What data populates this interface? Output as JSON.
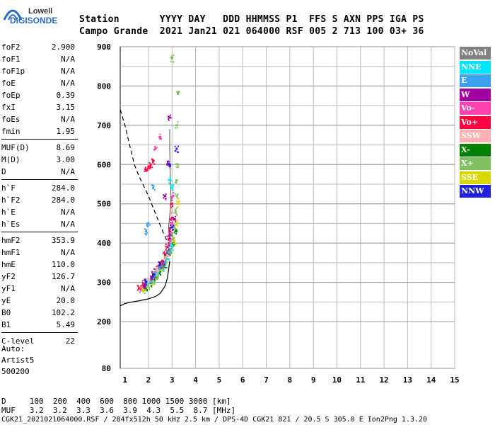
{
  "logo": {
    "line1": "Lowell",
    "line2": "DIGISONDE"
  },
  "header": {
    "row1": "Station       YYYY DAY   DDD HHMMSS P1  FFS S AXN PPS IGA PS",
    "row2": "Campo Grande  2021 Jan21 021 064000 RSF 005 2 713 100 03+ 36"
  },
  "params": [
    {
      "label": "foF2",
      "value": "2.900"
    },
    {
      "label": "foF1",
      "value": "N/A"
    },
    {
      "label": "foF1p",
      "value": "N/A"
    },
    {
      "label": "foE",
      "value": "N/A"
    },
    {
      "label": "foEp",
      "value": "0.39"
    },
    {
      "label": "fxI",
      "value": "3.15"
    },
    {
      "label": "foEs",
      "value": "N/A"
    },
    {
      "label": "fmin",
      "value": "1.95"
    },
    {
      "label": "MUF(D)",
      "value": "8.69"
    },
    {
      "label": "M(D)",
      "value": "3.00"
    },
    {
      "label": "D",
      "value": "N/A"
    },
    {
      "label": "h`F",
      "value": "284.0"
    },
    {
      "label": "h`F2",
      "value": "284.0"
    },
    {
      "label": "h`E",
      "value": "N/A"
    },
    {
      "label": "h`Es",
      "value": "N/A"
    },
    {
      "label": "hmF2",
      "value": "353.9"
    },
    {
      "label": "hmF1",
      "value": "N/A"
    },
    {
      "label": "hmE",
      "value": "110.0"
    },
    {
      "label": "yF2",
      "value": "126.7"
    },
    {
      "label": "yF1",
      "value": "N/A"
    },
    {
      "label": "yE",
      "value": "20.0"
    },
    {
      "label": "B0",
      "value": "102.2"
    },
    {
      "label": "B1",
      "value": "5.49"
    },
    {
      "label": "C-level",
      "value": "22"
    }
  ],
  "auto": {
    "line1": "Auto:",
    "line2": "Artist5",
    "line3": "500200"
  },
  "legend": [
    {
      "label": "NoVal",
      "color": "#808080"
    },
    {
      "label": "NNE",
      "color": "#00e5ff"
    },
    {
      "label": "E",
      "color": "#3ca0f0"
    },
    {
      "label": "W",
      "color": "#a000a0"
    },
    {
      "label": "Vo-",
      "color": "#ff40b0"
    },
    {
      "label": "Vo+",
      "color": "#ff0040"
    },
    {
      "label": "SSW",
      "color": "#ffb0b0"
    },
    {
      "label": "X-",
      "color": "#008000"
    },
    {
      "label": "X+",
      "color": "#80c060"
    },
    {
      "label": "SSE",
      "color": "#d8d800"
    },
    {
      "label": "NNW",
      "color": "#2020e0"
    }
  ],
  "footer": {
    "d_row": "D     100  200  400  600  800 1000 1500 3000 [km]",
    "muf_row": "MUF   3.2  3.2  3.3  3.6  3.9  4.3  5.5  8.7 [MHz]",
    "info": "CGK21_2021021064000.RSF / 284fx512h 50 kHz 2.5 km / DPS-4D CGK21 821 / 20.5 S 305.0 E Ion2Png 1.3.20"
  },
  "chart_data": {
    "type": "scatter",
    "title": "",
    "xlabel": "",
    "ylabel": "",
    "xlim": [
      0.8,
      15
    ],
    "ylim": [
      80,
      900
    ],
    "x_ticks": [
      1,
      2,
      3,
      4,
      5,
      6,
      7,
      8,
      9,
      10,
      11,
      12,
      13,
      14,
      15
    ],
    "y_ticks": [
      80,
      200,
      300,
      400,
      500,
      600,
      700,
      800,
      900
    ],
    "grid": true,
    "series": [
      {
        "name": "Vo+",
        "color": "#ff0040",
        "points": [
          [
            1.6,
            285
          ],
          [
            1.7,
            290
          ],
          [
            1.8,
            295
          ],
          [
            1.9,
            300
          ],
          [
            2.0,
            305
          ],
          [
            2.1,
            310
          ],
          [
            2.2,
            318
          ],
          [
            2.3,
            325
          ],
          [
            2.4,
            335
          ],
          [
            2.5,
            345
          ],
          [
            2.6,
            355
          ],
          [
            2.7,
            370
          ],
          [
            2.8,
            390
          ],
          [
            2.85,
            410
          ],
          [
            2.9,
            430
          ],
          [
            2.95,
            460
          ],
          [
            3.0,
            500
          ],
          [
            1.9,
            585
          ],
          [
            2.0,
            595
          ],
          [
            2.1,
            600
          ],
          [
            2.2,
            610
          ]
        ]
      },
      {
        "name": "Vo-",
        "color": "#ff40b0",
        "points": [
          [
            1.7,
            280
          ],
          [
            1.85,
            290
          ],
          [
            2.05,
            300
          ],
          [
            2.25,
            315
          ],
          [
            2.45,
            330
          ],
          [
            2.65,
            350
          ],
          [
            2.75,
            365
          ],
          [
            2.9,
            400
          ],
          [
            3.0,
            450
          ],
          [
            3.05,
            520
          ],
          [
            2.3,
            640
          ],
          [
            2.5,
            670
          ]
        ]
      },
      {
        "name": "X+",
        "color": "#80c060",
        "points": [
          [
            1.8,
            280
          ],
          [
            2.0,
            290
          ],
          [
            2.2,
            300
          ],
          [
            2.4,
            315
          ],
          [
            2.6,
            335
          ],
          [
            2.8,
            360
          ],
          [
            2.95,
            385
          ],
          [
            3.05,
            410
          ],
          [
            3.1,
            440
          ],
          [
            3.15,
            480
          ],
          [
            3.2,
            520
          ],
          [
            3.2,
            560
          ],
          [
            3.25,
            600
          ],
          [
            3.2,
            700
          ],
          [
            3.25,
            780
          ],
          [
            3.0,
            870
          ]
        ]
      },
      {
        "name": "X-",
        "color": "#008000",
        "points": [
          [
            1.9,
            285
          ],
          [
            2.1,
            298
          ],
          [
            2.3,
            312
          ],
          [
            2.5,
            328
          ],
          [
            2.7,
            345
          ],
          [
            2.9,
            370
          ],
          [
            3.05,
            395
          ],
          [
            3.15,
            430
          ]
        ]
      },
      {
        "name": "SSE",
        "color": "#d8d800",
        "points": [
          [
            1.75,
            282
          ],
          [
            1.95,
            292
          ],
          [
            2.15,
            303
          ],
          [
            2.35,
            318
          ],
          [
            2.55,
            336
          ],
          [
            2.75,
            358
          ],
          [
            2.95,
            378
          ],
          [
            3.1,
            405
          ],
          [
            3.2,
            450
          ],
          [
            3.25,
            500
          ]
        ]
      },
      {
        "name": "NNE",
        "color": "#00e5ff",
        "points": [
          [
            2.0,
            300
          ],
          [
            2.2,
            310
          ],
          [
            2.4,
            325
          ],
          [
            2.6,
            340
          ],
          [
            2.8,
            360
          ],
          [
            3.0,
            390
          ],
          [
            3.0,
            540
          ],
          [
            2.9,
            560
          ]
        ]
      },
      {
        "name": "E",
        "color": "#3ca0f0",
        "points": [
          [
            2.1,
            305
          ],
          [
            2.3,
            320
          ],
          [
            2.5,
            338
          ],
          [
            2.7,
            352
          ],
          [
            2.9,
            380
          ],
          [
            1.9,
            430
          ],
          [
            2.0,
            450
          ],
          [
            2.2,
            540
          ]
        ]
      },
      {
        "name": "W",
        "color": "#a000a0",
        "points": [
          [
            1.8,
            290
          ],
          [
            2.2,
            315
          ],
          [
            2.6,
            345
          ],
          [
            2.9,
            420
          ],
          [
            3.1,
            460
          ],
          [
            2.7,
            520
          ],
          [
            2.8,
            600
          ],
          [
            2.9,
            720
          ]
        ]
      },
      {
        "name": "NNW",
        "color": "#2020e0",
        "points": [
          [
            1.9,
            300
          ],
          [
            2.2,
            320
          ],
          [
            2.5,
            345
          ],
          [
            2.8,
            375
          ],
          [
            3.0,
            440
          ],
          [
            3.2,
            640
          ],
          [
            2.9,
            600
          ]
        ]
      },
      {
        "name": "SSW",
        "color": "#ffb0b0",
        "points": [
          [
            2.0,
            305
          ],
          [
            2.4,
            330
          ],
          [
            2.8,
            370
          ],
          [
            3.0,
            480
          ]
        ]
      },
      {
        "name": "NoVal",
        "color": "#808080",
        "points": [
          [
            2.6,
            340
          ],
          [
            2.8,
            380
          ],
          [
            3.0,
            420
          ]
        ]
      }
    ],
    "profile_line": [
      [
        0.8,
        240
      ],
      [
        1.0,
        246
      ],
      [
        1.3,
        250
      ],
      [
        1.6,
        253
      ],
      [
        2.0,
        258
      ],
      [
        2.3,
        264
      ],
      [
        2.5,
        272
      ],
      [
        2.7,
        290
      ],
      [
        2.8,
        310
      ],
      [
        2.85,
        330
      ],
      [
        2.9,
        354
      ]
    ],
    "dashed_line": [
      [
        0.8,
        740
      ],
      [
        1.0,
        700
      ],
      [
        1.2,
        650
      ],
      [
        1.4,
        600
      ],
      [
        1.6,
        570
      ],
      [
        1.8,
        545
      ],
      [
        2.0,
        520
      ],
      [
        2.2,
        490
      ],
      [
        2.4,
        460
      ],
      [
        2.6,
        430
      ],
      [
        2.75,
        410
      ],
      [
        2.85,
        400
      ],
      [
        2.9,
        390
      ]
    ],
    "vertical_trace": [
      [
        2.9,
        690
      ],
      [
        2.9,
        640
      ],
      [
        2.92,
        580
      ],
      [
        2.95,
        540
      ],
      [
        2.95,
        500
      ],
      [
        2.9,
        470
      ],
      [
        2.85,
        440
      ],
      [
        2.9,
        400
      ]
    ]
  }
}
